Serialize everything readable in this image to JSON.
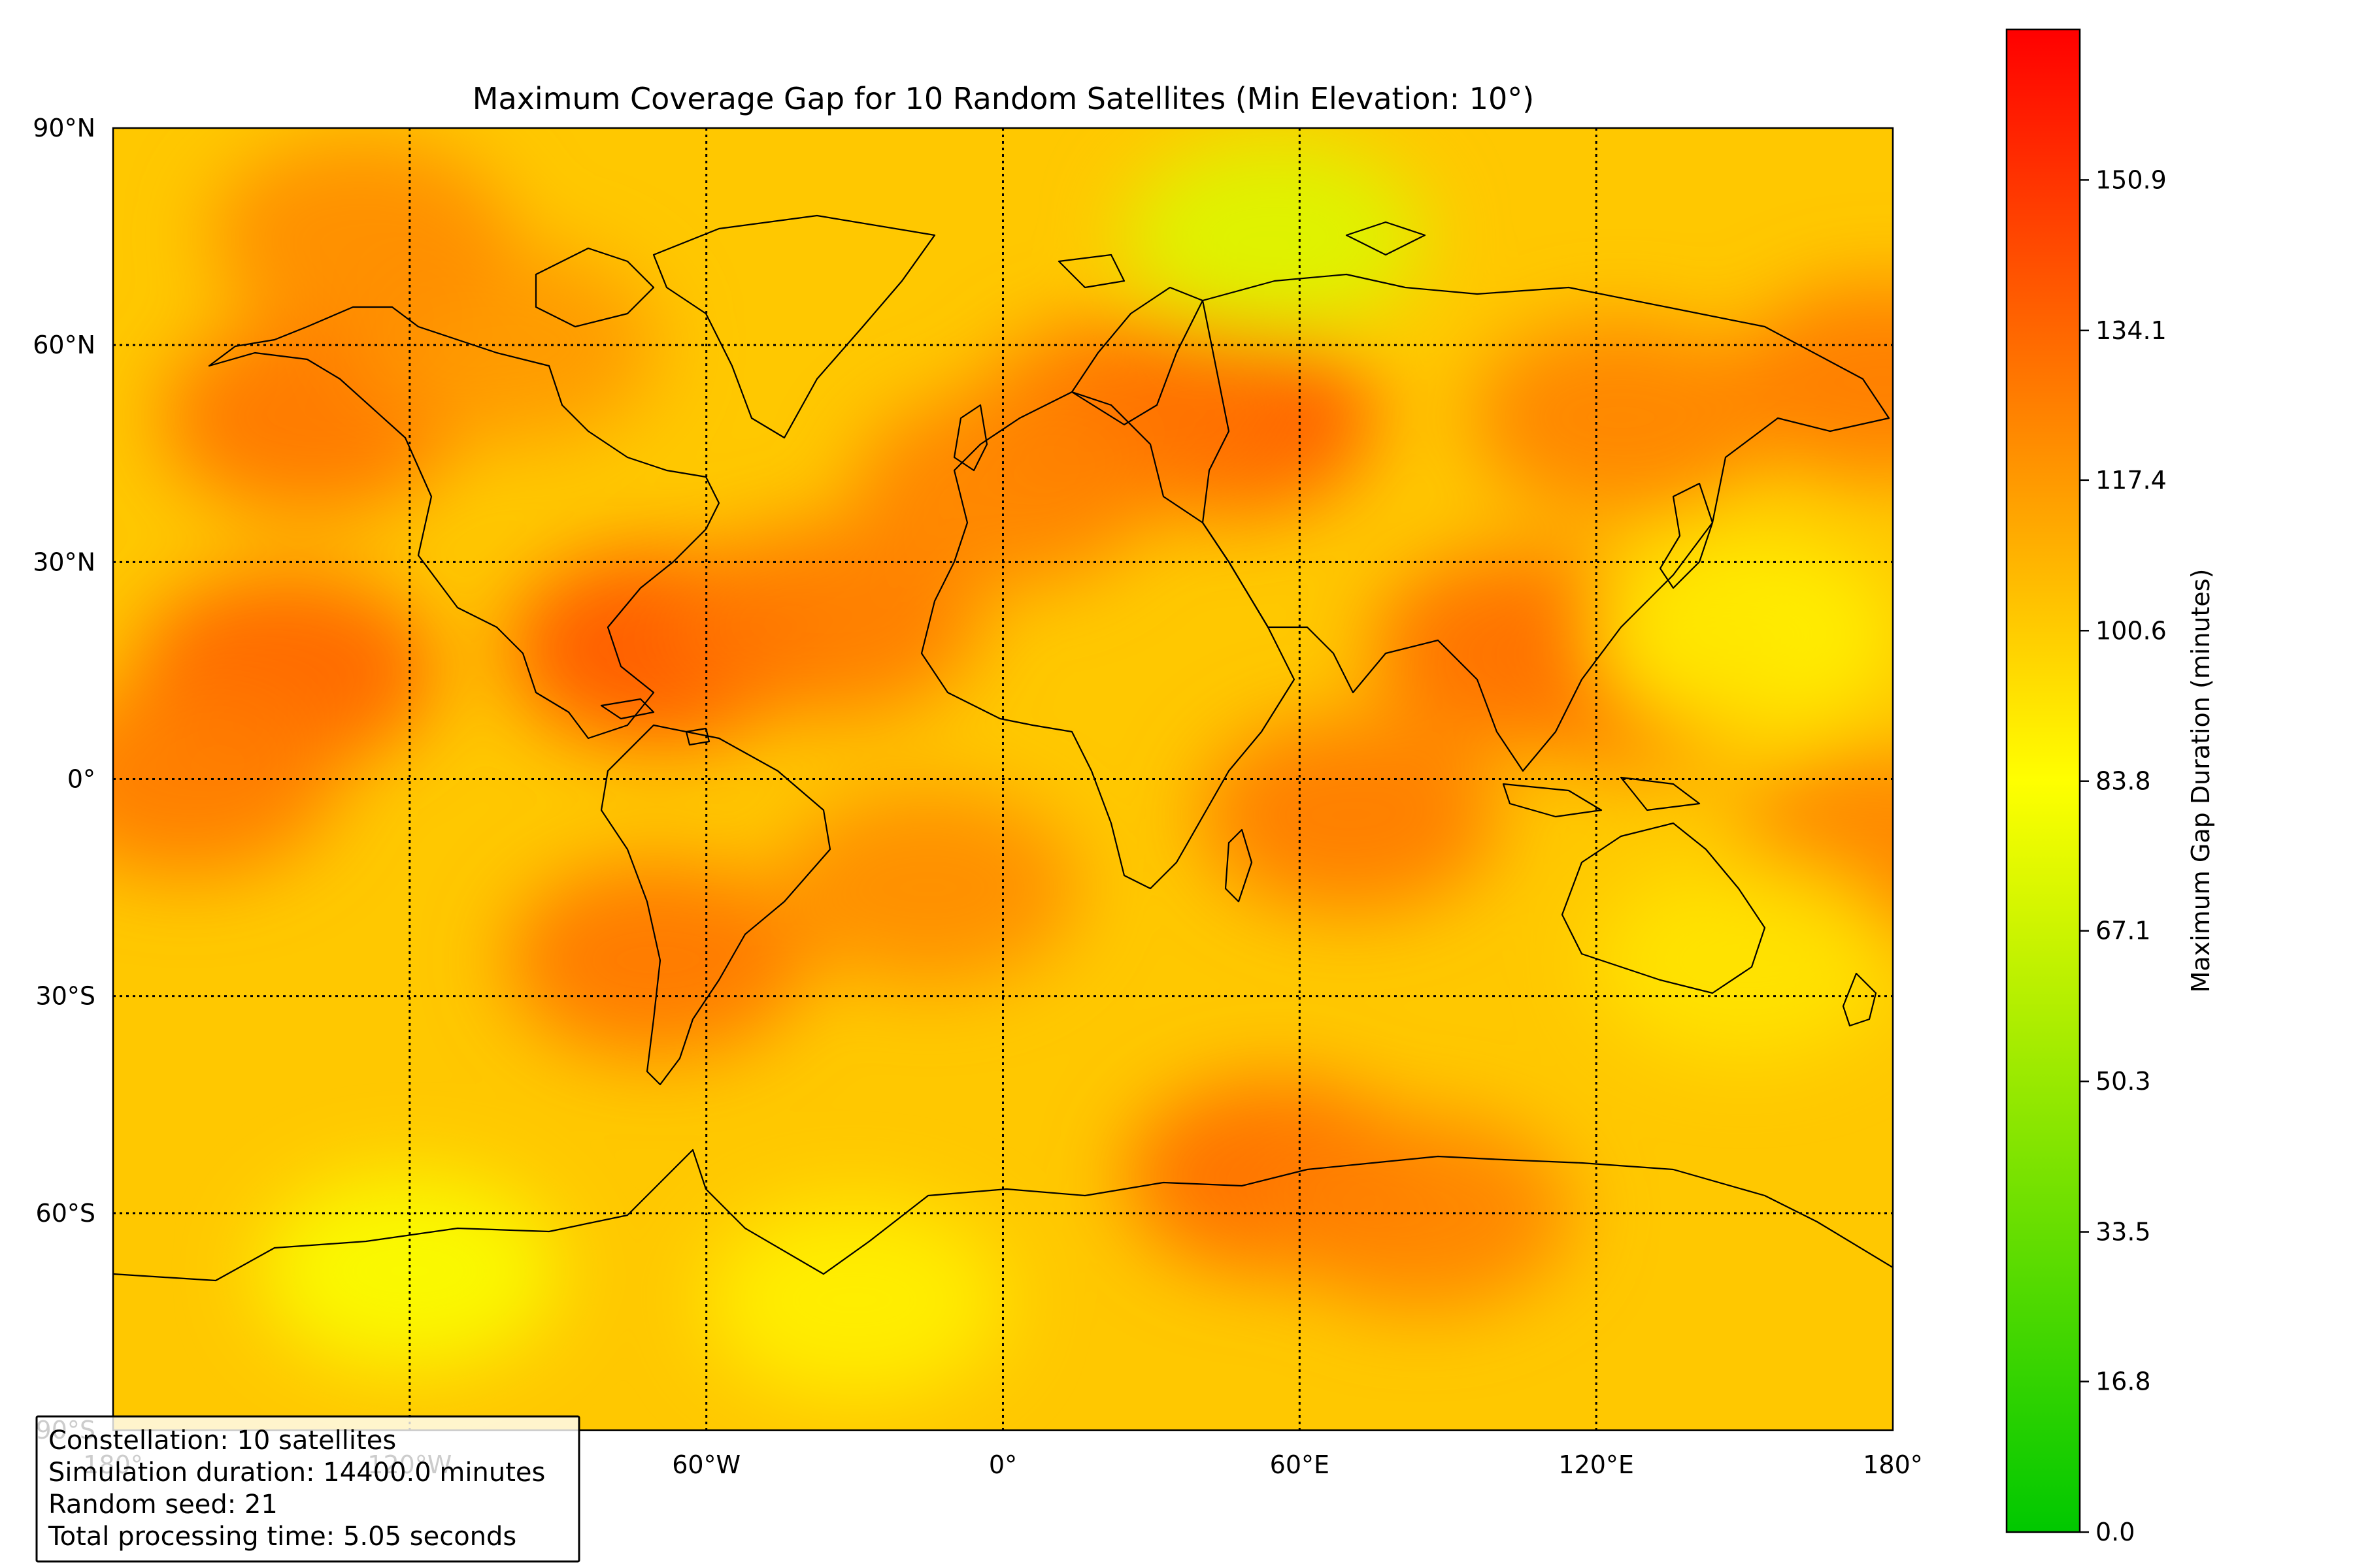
{
  "chart_data": {
    "type": "heatmap",
    "title": "Maximum Coverage Gap for 10 Random Satellites (Min Elevation: 10°)",
    "x_ticks": [
      "180°",
      "120°W",
      "60°W",
      "0°",
      "60°E",
      "120°E",
      "180°"
    ],
    "x_tick_values": [
      -180,
      -120,
      -60,
      0,
      60,
      120,
      180
    ],
    "y_ticks": [
      "90°N",
      "60°N",
      "30°N",
      "0°",
      "30°S",
      "60°S",
      "90°S"
    ],
    "y_tick_values": [
      90,
      60,
      30,
      0,
      -30,
      -60,
      -90
    ],
    "xlim": [
      -180,
      180
    ],
    "ylim": [
      -90,
      90
    ],
    "grid": "dotted",
    "colorbar": {
      "label": "Maximum Gap Duration (minutes)",
      "ticks": [
        "0.0",
        "16.8",
        "33.5",
        "50.3",
        "67.1",
        "83.8",
        "100.6",
        "117.4",
        "134.1",
        "150.9"
      ],
      "tick_values": [
        0.0,
        16.8,
        33.5,
        50.3,
        67.1,
        83.8,
        100.6,
        117.4,
        134.1,
        150.9
      ],
      "range": [
        0,
        167.7
      ],
      "colors": [
        "#00c800",
        "#ffff00",
        "#ff0000"
      ]
    },
    "hotspots": [
      {
        "lon": -145,
        "lat": 15,
        "value": 135
      },
      {
        "lon": -165,
        "lat": 0,
        "value": 128
      },
      {
        "lon": -140,
        "lat": 50,
        "value": 130
      },
      {
        "lon": -70,
        "lat": 18,
        "value": 140
      },
      {
        "lon": -35,
        "lat": 22,
        "value": 128
      },
      {
        "lon": -70,
        "lat": -25,
        "value": 130
      },
      {
        "lon": 45,
        "lat": 50,
        "value": 138
      },
      {
        "lon": 25,
        "lat": 50,
        "value": 130
      },
      {
        "lon": 105,
        "lat": 18,
        "value": 132
      },
      {
        "lon": 130,
        "lat": 15,
        "value": 130
      },
      {
        "lon": 125,
        "lat": 50,
        "value": 125
      },
      {
        "lon": 70,
        "lat": -5,
        "value": 128
      },
      {
        "lon": 55,
        "lat": -55,
        "value": 132
      },
      {
        "lon": 85,
        "lat": -60,
        "value": 125
      },
      {
        "lon": -15,
        "lat": -15,
        "value": 122
      },
      {
        "lon": -100,
        "lat": 60,
        "value": 118
      },
      {
        "lon": 178,
        "lat": 55,
        "value": 128
      },
      {
        "lon": 178,
        "lat": -10,
        "value": 125
      },
      {
        "lon": 0,
        "lat": 40,
        "value": 125
      },
      {
        "lon": -130,
        "lat": 75,
        "value": 122
      }
    ],
    "coolspots": [
      {
        "lon": 55,
        "lat": 75,
        "value": 72
      },
      {
        "lon": 150,
        "lat": 20,
        "value": 88
      },
      {
        "lon": 150,
        "lat": -25,
        "value": 92
      },
      {
        "lon": -120,
        "lat": -68,
        "value": 82
      },
      {
        "lon": -30,
        "lat": -72,
        "value": 88
      }
    ]
  },
  "info_box": {
    "line1": "Constellation: 10 satellites",
    "line2": "Simulation duration: 14400.0 minutes",
    "line3": "Random seed: 21",
    "line4": "Total processing time: 5.05 seconds"
  }
}
